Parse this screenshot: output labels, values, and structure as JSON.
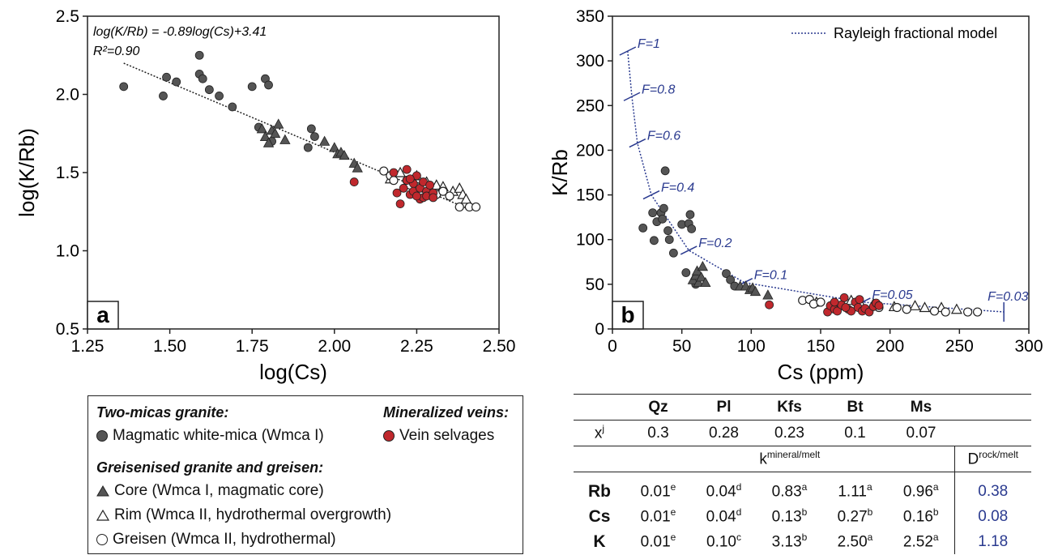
{
  "chart_data": [
    {
      "type": "scatter",
      "panel_label": "a",
      "xlabel": "log(Cs)",
      "ylabel": "log(K/Rb)",
      "xlim": [
        1.25,
        2.5
      ],
      "ylim": [
        0.5,
        2.5
      ],
      "xticks": [
        "1.25",
        "1.50",
        "1.75",
        "2.00",
        "2.25",
        "2.50"
      ],
      "yticks": [
        "0.5",
        "1.0",
        "1.5",
        "2.0",
        "2.5"
      ],
      "annotation_line1": "log(K/Rb) = -0.89log(Cs)+3.41",
      "annotation_r2": "R²=0.90",
      "trend": {
        "slope": -0.89,
        "intercept": 3.41,
        "x_range": [
          1.36,
          2.42
        ]
      },
      "series": [
        {
          "name": "Magmatic white-mica (Wmca I)",
          "marker": "circle-filled",
          "color": "#555555",
          "points": [
            [
              1.36,
              2.05
            ],
            [
              1.48,
              1.99
            ],
            [
              1.49,
              2.11
            ],
            [
              1.52,
              2.08
            ],
            [
              1.59,
              2.25
            ],
            [
              1.59,
              2.13
            ],
            [
              1.6,
              2.1
            ],
            [
              1.62,
              2.03
            ],
            [
              1.65,
              1.99
            ],
            [
              1.69,
              1.92
            ],
            [
              1.75,
              2.05
            ],
            [
              1.79,
              2.1
            ],
            [
              1.8,
              2.06
            ],
            [
              1.77,
              1.79
            ],
            [
              1.81,
              1.7
            ],
            [
              1.92,
              1.66
            ],
            [
              1.93,
              1.78
            ],
            [
              1.94,
              1.73
            ]
          ]
        },
        {
          "name": "Core (Wmca I, magmatic core)",
          "marker": "triangle-filled",
          "color": "#555555",
          "points": [
            [
              1.78,
              1.78
            ],
            [
              1.79,
              1.73
            ],
            [
              1.8,
              1.69
            ],
            [
              1.81,
              1.77
            ],
            [
              1.82,
              1.75
            ],
            [
              1.83,
              1.81
            ],
            [
              1.85,
              1.71
            ],
            [
              1.97,
              1.7
            ],
            [
              2.0,
              1.66
            ],
            [
              2.01,
              1.62
            ],
            [
              2.02,
              1.63
            ],
            [
              2.03,
              1.61
            ],
            [
              2.06,
              1.56
            ],
            [
              2.07,
              1.53
            ]
          ]
        },
        {
          "name": "Rim (Wmca II, hydrothermal overgrowth)",
          "marker": "triangle-open",
          "color": "#ffffff",
          "points": [
            [
              2.17,
              1.46
            ],
            [
              2.2,
              1.5
            ],
            [
              2.25,
              1.48
            ],
            [
              2.28,
              1.44
            ],
            [
              2.31,
              1.42
            ],
            [
              2.33,
              1.41
            ],
            [
              2.36,
              1.38
            ],
            [
              2.38,
              1.4
            ],
            [
              2.39,
              1.36
            ],
            [
              2.4,
              1.33
            ]
          ]
        },
        {
          "name": "Greisen (Wmca II, hydrothermal)",
          "marker": "circle-open",
          "color": "#ffffff",
          "points": [
            [
              2.15,
              1.51
            ],
            [
              2.17,
              1.48
            ],
            [
              2.18,
              1.45
            ],
            [
              2.22,
              1.45
            ],
            [
              2.23,
              1.42
            ],
            [
              2.25,
              1.41
            ],
            [
              2.27,
              1.4
            ],
            [
              2.29,
              1.38
            ],
            [
              2.31,
              1.36
            ],
            [
              2.33,
              1.38
            ],
            [
              2.35,
              1.35
            ],
            [
              2.38,
              1.28
            ],
            [
              2.41,
              1.28
            ],
            [
              2.43,
              1.28
            ]
          ]
        },
        {
          "name": "Vein selvages",
          "marker": "circle-filled",
          "color": "#c0282d",
          "points": [
            [
              2.06,
              1.44
            ],
            [
              2.18,
              1.5
            ],
            [
              2.19,
              1.37
            ],
            [
              2.2,
              1.3
            ],
            [
              2.21,
              1.4
            ],
            [
              2.22,
              1.45
            ],
            [
              2.22,
              1.52
            ],
            [
              2.23,
              1.36
            ],
            [
              2.24,
              1.43
            ],
            [
              2.24,
              1.38
            ],
            [
              2.25,
              1.48
            ],
            [
              2.26,
              1.33
            ],
            [
              2.26,
              1.4
            ],
            [
              2.27,
              1.34
            ],
            [
              2.27,
              1.44
            ],
            [
              2.28,
              1.38
            ],
            [
              2.28,
              1.35
            ],
            [
              2.29,
              1.42
            ],
            [
              2.3,
              1.37
            ],
            [
              2.3,
              1.34
            ],
            [
              2.25,
              1.35
            ],
            [
              2.23,
              1.46
            ]
          ]
        }
      ]
    },
    {
      "type": "scatter",
      "panel_label": "b",
      "xlabel": "Cs (ppm)",
      "ylabel": "K/Rb",
      "xlim": [
        0,
        300
      ],
      "ylim": [
        0,
        350
      ],
      "xticks": [
        "0",
        "50",
        "100",
        "150",
        "200",
        "250",
        "300"
      ],
      "yticks": [
        "0",
        "50",
        "100",
        "150",
        "200",
        "250",
        "300",
        "350"
      ],
      "legend_label": "Rayleigh fractional model",
      "legend_position": "top-right",
      "model_F_labels": [
        {
          "label": "F=1",
          "x": 11,
          "y": 311
        },
        {
          "label": "F=0.8",
          "x": 14,
          "y": 260
        },
        {
          "label": "F=0.6",
          "x": 18,
          "y": 208
        },
        {
          "label": "F=0.4",
          "x": 28,
          "y": 150
        },
        {
          "label": "F=0.2",
          "x": 55,
          "y": 88
        },
        {
          "label": "F=0.1",
          "x": 95,
          "y": 52
        },
        {
          "label": "F=0.05",
          "x": 180,
          "y": 30
        },
        {
          "label": "F=0.03",
          "x": 282,
          "y": 19
        }
      ],
      "series": [
        {
          "name": "Magmatic white-mica (Wmca I)",
          "marker": "circle-filled",
          "color": "#555555",
          "points": [
            [
              22,
              113
            ],
            [
              29,
              130
            ],
            [
              30,
              99
            ],
            [
              32,
              120
            ],
            [
              35,
              130
            ],
            [
              36,
              123
            ],
            [
              37,
              135
            ],
            [
              38,
              177
            ],
            [
              40,
              110
            ],
            [
              41,
              100
            ],
            [
              44,
              85
            ],
            [
              50,
              117
            ],
            [
              53,
              63
            ],
            [
              55,
              118
            ],
            [
              56,
              128
            ],
            [
              57,
              112
            ],
            [
              60,
              50
            ],
            [
              82,
              62
            ],
            [
              85,
              55
            ],
            [
              88,
              48
            ]
          ]
        },
        {
          "name": "Core (Wmca I, magmatic core)",
          "marker": "triangle-filled",
          "color": "#555555",
          "points": [
            [
              58,
              55
            ],
            [
              60,
              60
            ],
            [
              61,
              65
            ],
            [
              62,
              52
            ],
            [
              64,
              58
            ],
            [
              65,
              70
            ],
            [
              67,
              52
            ],
            [
              92,
              48
            ],
            [
              96,
              48
            ],
            [
              99,
              44
            ],
            [
              101,
              46
            ],
            [
              103,
              42
            ],
            [
              112,
              38
            ]
          ]
        },
        {
          "name": "Rim (Wmca II, hydrothermal overgrowth)",
          "marker": "triangle-open",
          "color": "#ffffff",
          "points": [
            [
              147,
              30
            ],
            [
              160,
              27
            ],
            [
              172,
              32
            ],
            [
              188,
              28
            ],
            [
              203,
              25
            ],
            [
              218,
              26
            ],
            [
              225,
              24
            ],
            [
              237,
              24
            ],
            [
              248,
              22
            ]
          ]
        },
        {
          "name": "Greisen (Wmca II, hydrothermal)",
          "marker": "circle-open",
          "color": "#ffffff",
          "points": [
            [
              137,
              32
            ],
            [
              142,
              33
            ],
            [
              145,
              28
            ],
            [
              150,
              30
            ],
            [
              165,
              26
            ],
            [
              178,
              27
            ],
            [
              192,
              24
            ],
            [
              205,
              24
            ],
            [
              212,
              22
            ],
            [
              232,
              20
            ],
            [
              240,
              19
            ],
            [
              256,
              19
            ],
            [
              263,
              19
            ]
          ]
        },
        {
          "name": "Vein selvages",
          "marker": "circle-filled",
          "color": "#c0282d",
          "points": [
            [
              113,
              27
            ],
            [
              155,
              19
            ],
            [
              157,
              26
            ],
            [
              160,
              22
            ],
            [
              162,
              20
            ],
            [
              165,
              27
            ],
            [
              167,
              35
            ],
            [
              170,
              22
            ],
            [
              172,
              20
            ],
            [
              175,
              30
            ],
            [
              177,
              24
            ],
            [
              180,
              20
            ],
            [
              182,
              23
            ],
            [
              185,
              19
            ],
            [
              188,
              25
            ],
            [
              190,
              29
            ],
            [
              160,
              30
            ],
            [
              168,
              24
            ],
            [
              178,
              33
            ],
            [
              192,
              26
            ]
          ]
        }
      ]
    }
  ],
  "legend": {
    "group1_title": "Two-micas granite:",
    "group1_item": "Magmatic white-mica (Wmca I)",
    "group2_title": "Mineralized veins:",
    "group2_item": "Vein selvages",
    "group3_title": "Greisenised granite and greisen:",
    "group3_items": [
      "Core (Wmca I, magmatic core)",
      "Rim (Wmca II, hydrothermal overgrowth)",
      "Greisen (Wmca II, hydrothermal)"
    ]
  },
  "table": {
    "minerals": [
      "Qz",
      "Pl",
      "Kfs",
      "Bt",
      "Ms"
    ],
    "x_label": "x",
    "x_label_sup": "j",
    "x_values": [
      "0.3",
      "0.28",
      "0.23",
      "0.1",
      "0.07"
    ],
    "k_header": "k",
    "k_header_sup": "mineral/melt",
    "d_header": "D",
    "d_header_sup": "rock/melt",
    "rows": [
      {
        "element": "Rb",
        "values": [
          [
            "0.01",
            "e"
          ],
          [
            "0.04",
            "d"
          ],
          [
            "0.83",
            "a"
          ],
          [
            "1.11",
            "a"
          ],
          [
            "0.96",
            "a"
          ]
        ],
        "D": "0.38"
      },
      {
        "element": "Cs",
        "values": [
          [
            "0.01",
            "e"
          ],
          [
            "0.04",
            "d"
          ],
          [
            "0.13",
            "b"
          ],
          [
            "0.27",
            "b"
          ],
          [
            "0.16",
            "b"
          ]
        ],
        "D": "0.08"
      },
      {
        "element": "K",
        "values": [
          [
            "0.01",
            "e"
          ],
          [
            "0.10",
            "c"
          ],
          [
            "3.13",
            "b"
          ],
          [
            "2.50",
            "a"
          ],
          [
            "2.52",
            "a"
          ]
        ],
        "D": "1.18"
      }
    ]
  }
}
